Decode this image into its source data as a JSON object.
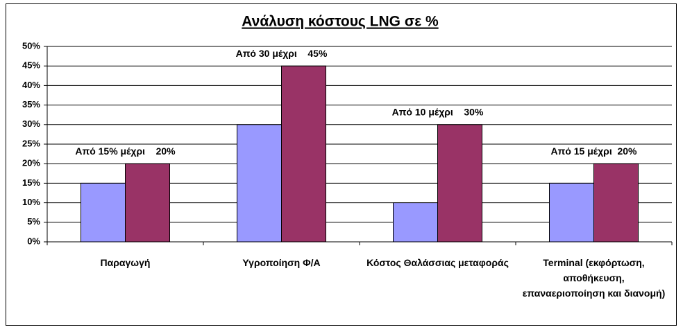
{
  "chart_data": {
    "type": "bar",
    "title": "Ανάλυση κόστους LNG σε %",
    "categories": [
      "Παραγωγή",
      "Υγροποίηση Φ/Α",
      "Κόστος Θαλάσσιας μεταφοράς",
      "Terminal (εκφόρτωση, αποθήκευση, επαναεριοποίηση και διανομή)"
    ],
    "series": [
      {
        "color": "#9999ff",
        "values": [
          15,
          30,
          10,
          15
        ]
      },
      {
        "color": "#993366",
        "values": [
          20,
          45,
          30,
          20
        ]
      }
    ],
    "annotations": [
      "Από 15% μέχρι    20%",
      "Από 30 μέχρι    45%",
      "Από 10 μέχρι    30%",
      "Από 15 μέχρι  20%"
    ],
    "ylim": [
      0,
      50
    ],
    "yticks": [
      {
        "value": 0,
        "label": "0%"
      },
      {
        "value": 5,
        "label": "5%"
      },
      {
        "value": 10,
        "label": "10%"
      },
      {
        "value": 15,
        "label": "15%"
      },
      {
        "value": 20,
        "label": "20%"
      },
      {
        "value": 25,
        "label": "25%"
      },
      {
        "value": 30,
        "label": "30%"
      },
      {
        "value": 35,
        "label": "35%"
      },
      {
        "value": 40,
        "label": "40%"
      },
      {
        "value": 45,
        "label": "45%"
      },
      {
        "value": 50,
        "label": "50%"
      }
    ],
    "grid": true
  }
}
